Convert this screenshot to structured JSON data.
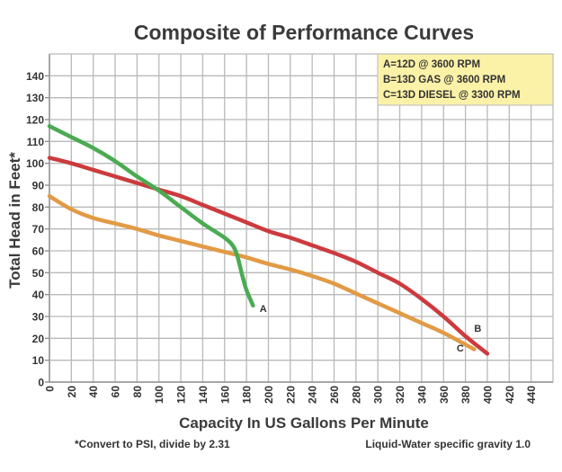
{
  "chart_data": {
    "type": "line",
    "title": "Composite of Performance Curves",
    "xlabel": "Capacity In US Gallons Per Minute",
    "ylabel": "Total Head in Feet*",
    "xlim": [
      0,
      460
    ],
    "ylim": [
      0,
      150
    ],
    "xticks": [
      0,
      20,
      40,
      60,
      80,
      100,
      120,
      140,
      160,
      180,
      200,
      220,
      240,
      260,
      280,
      300,
      320,
      340,
      360,
      380,
      400,
      420,
      440
    ],
    "yticks": [
      0,
      10,
      20,
      30,
      40,
      50,
      60,
      70,
      80,
      90,
      100,
      110,
      120,
      130,
      140
    ],
    "grid": true,
    "legend_position": "top-right",
    "legend": [
      "A=12D @ 3600 RPM",
      "B=13D GAS @ 3600 RPM",
      "C=13D DIESEL @ 3300 RPM"
    ],
    "series": [
      {
        "name": "A",
        "label": "A=12D @ 3600 RPM",
        "color": "#4aab52",
        "x": [
          0,
          20,
          40,
          60,
          80,
          100,
          120,
          140,
          160,
          168,
          172,
          176,
          180,
          186
        ],
        "y": [
          117,
          112,
          107,
          101,
          94,
          87.5,
          80,
          72.5,
          66,
          62,
          57,
          49,
          42,
          35
        ]
      },
      {
        "name": "B",
        "label": "B=13D GAS @ 3600 RPM",
        "color": "#cc3b3e",
        "x": [
          0,
          20,
          40,
          60,
          80,
          100,
          120,
          140,
          160,
          180,
          200,
          220,
          240,
          260,
          280,
          300,
          320,
          340,
          360,
          380,
          400
        ],
        "y": [
          102.5,
          100,
          97,
          94,
          91,
          88,
          85,
          81,
          77,
          73,
          69,
          66,
          62.5,
          59,
          55,
          50,
          45,
          38,
          30,
          21,
          13
        ]
      },
      {
        "name": "C",
        "label": "C=13D DIESEL @ 3300 RPM",
        "color": "#e29a45",
        "x": [
          0,
          20,
          40,
          60,
          80,
          100,
          120,
          140,
          160,
          180,
          200,
          220,
          240,
          260,
          280,
          300,
          320,
          340,
          360,
          388
        ],
        "y": [
          85,
          79,
          75,
          72.5,
          70,
          67,
          64.5,
          62,
          59.5,
          57,
          54,
          51.5,
          48.5,
          45,
          40.5,
          36,
          31.5,
          27,
          22.5,
          15
        ]
      }
    ],
    "annotations": [
      {
        "text": "A",
        "x": 192,
        "y": 32
      },
      {
        "text": "B",
        "x": 388,
        "y": 23
      },
      {
        "text": "C",
        "x": 372,
        "y": 14
      }
    ],
    "legend_bg": "#fbf2a8"
  },
  "footnotes": {
    "left": "*Convert to PSI, divide by 2.31",
    "right": "Liquid-Water specific gravity 1.0"
  }
}
